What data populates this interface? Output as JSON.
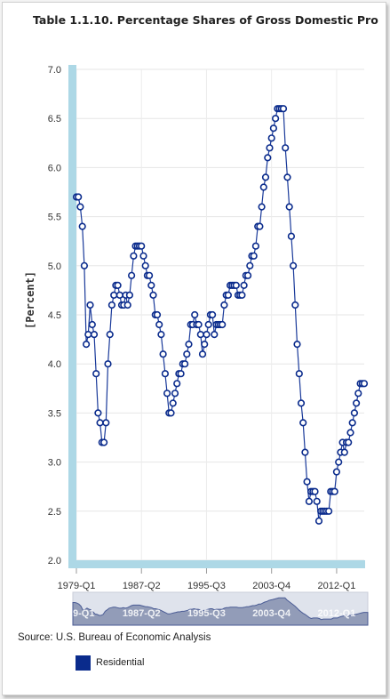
{
  "page": {
    "title": "Table 1.1.10. Percentage Shares of Gross Domestic Pro",
    "source": "Source: U.S. Bureau of Economic Analysis"
  },
  "colors": {
    "series": "#1a3a9a",
    "marker_stroke": "#0a2b8c",
    "axis_band": "#add8e6",
    "navigator_fill": "#8a95b3"
  },
  "chart_data": {
    "type": "line",
    "title": "Table 1.1.10. Percentage Shares of Gross Domestic Pro",
    "xlabel": "",
    "ylabel": "[Percent]",
    "ylim": [
      2.0,
      7.0
    ],
    "yticks": [
      "2.0",
      "2.5",
      "3.0",
      "3.5",
      "4.0",
      "4.5",
      "5.0",
      "5.5",
      "6.0",
      "6.5",
      "7.0"
    ],
    "xticks": [
      "1979-Q1",
      "1987-Q2",
      "1995-Q3",
      "2003-Q4",
      "2012-Q1"
    ],
    "xtick_positions": [
      0,
      33,
      66,
      99,
      132
    ],
    "navigator_labels": [
      "9-Q1",
      "1987-Q2",
      "1995-Q3",
      "2003-Q4",
      "2012-Q1"
    ],
    "grid": true,
    "legend_position": "bottom-left",
    "series": [
      {
        "name": "Residential",
        "values": [
          5.7,
          5.7,
          5.6,
          5.4,
          5.0,
          4.2,
          4.3,
          4.6,
          4.4,
          4.3,
          3.9,
          3.5,
          3.4,
          3.2,
          3.2,
          3.4,
          4.0,
          4.3,
          4.6,
          4.7,
          4.8,
          4.8,
          4.7,
          4.6,
          4.6,
          4.7,
          4.6,
          4.7,
          4.9,
          5.1,
          5.2,
          5.2,
          5.2,
          5.2,
          5.1,
          5.0,
          4.9,
          4.9,
          4.8,
          4.7,
          4.5,
          4.5,
          4.4,
          4.3,
          4.1,
          3.9,
          3.7,
          3.5,
          3.5,
          3.6,
          3.7,
          3.8,
          3.9,
          3.9,
          4.0,
          4.0,
          4.1,
          4.2,
          4.4,
          4.4,
          4.5,
          4.4,
          4.4,
          4.3,
          4.1,
          4.2,
          4.3,
          4.4,
          4.5,
          4.5,
          4.3,
          4.4,
          4.4,
          4.4,
          4.4,
          4.6,
          4.7,
          4.7,
          4.8,
          4.8,
          4.8,
          4.8,
          4.7,
          4.7,
          4.7,
          4.8,
          4.9,
          4.9,
          5.0,
          5.1,
          5.1,
          5.2,
          5.4,
          5.4,
          5.6,
          5.8,
          5.9,
          6.1,
          6.2,
          6.3,
          6.4,
          6.5,
          6.6,
          6.6,
          6.6,
          6.6,
          6.2,
          5.9,
          5.6,
          5.3,
          5.0,
          4.6,
          4.2,
          3.9,
          3.6,
          3.4,
          3.1,
          2.8,
          2.6,
          2.7,
          2.7,
          2.7,
          2.6,
          2.4,
          2.5,
          2.5,
          2.5,
          2.5,
          2.5,
          2.7,
          2.7,
          2.7,
          2.9,
          3.0,
          3.1,
          3.2,
          3.1,
          3.2,
          3.2,
          3.3,
          3.4,
          3.5,
          3.6,
          3.7,
          3.8,
          3.8,
          3.8
        ]
      }
    ]
  }
}
